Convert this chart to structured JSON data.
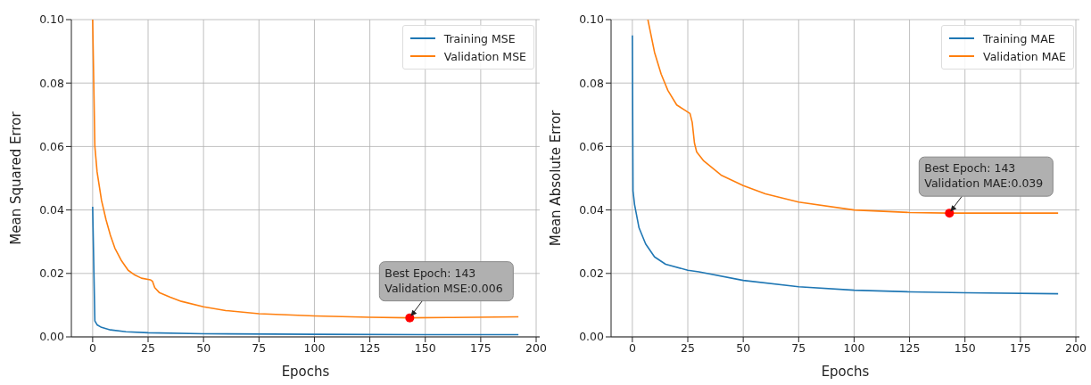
{
  "chart_data": [
    {
      "type": "line",
      "xlabel": "Epochs",
      "ylabel": "Mean Squared Error",
      "xlim": [
        -9.6,
        201.6
      ],
      "xticks": [
        0,
        25,
        50,
        75,
        100,
        125,
        150,
        175,
        200
      ],
      "ylim": [
        0,
        0.1
      ],
      "yticks": [
        {
          "value": 0,
          "label": "0.00"
        },
        {
          "value": 0.02,
          "label": "0.02"
        },
        {
          "value": 0.04,
          "label": "0.04"
        },
        {
          "value": 0.06,
          "label": "0.06"
        },
        {
          "value": 0.08,
          "label": "0.08"
        },
        {
          "value": 0.1,
          "label": "0.10"
        }
      ],
      "grid": true,
      "legend": "top right",
      "series": [
        {
          "name": "Training MSE",
          "color": "#1f77b4",
          "x": [
            0,
            1,
            2,
            4,
            8,
            15,
            25,
            50,
            100,
            150,
            192
          ],
          "values": [
            0.041,
            0.005,
            0.0038,
            0.003,
            0.0022,
            0.0016,
            0.0013,
            0.001,
            0.0008,
            0.0007,
            0.0007
          ]
        },
        {
          "name": "Validation MSE",
          "color": "#ff7f0e",
          "x": [
            0,
            1,
            2,
            4,
            6,
            8,
            10,
            13,
            16,
            19,
            22,
            26,
            27,
            28,
            30,
            35,
            40,
            50,
            60,
            75,
            100,
            125,
            143,
            160,
            192
          ],
          "values": [
            0.1,
            0.06,
            0.052,
            0.043,
            0.037,
            0.032,
            0.028,
            0.024,
            0.021,
            0.0195,
            0.0185,
            0.018,
            0.0175,
            0.0155,
            0.014,
            0.0125,
            0.0112,
            0.0095,
            0.0083,
            0.0073,
            0.0066,
            0.0062,
            0.006,
            0.0061,
            0.0063
          ]
        },
        {
          "type": "scatter",
          "color": "#ff0000",
          "marker": "circle",
          "x": [
            143
          ],
          "values": [
            0.006
          ]
        }
      ],
      "annotations": [
        {
          "text": "Best Epoch: 143\nValidation MSE:0.006",
          "x": 143,
          "y": 0.006
        }
      ]
    },
    {
      "type": "line",
      "xlabel": "Epochs",
      "ylabel": "Mean Absolute Error",
      "xlim": [
        -9.6,
        201.6
      ],
      "xticks": [
        0,
        25,
        50,
        75,
        100,
        125,
        150,
        175,
        200
      ],
      "ylim": [
        0,
        0.1
      ],
      "yticks": [
        {
          "value": 0,
          "label": "0.00"
        },
        {
          "value": 0.02,
          "label": "0.02"
        },
        {
          "value": 0.04,
          "label": "0.04"
        },
        {
          "value": 0.06,
          "label": "0.06"
        },
        {
          "value": 0.08,
          "label": "0.08"
        },
        {
          "value": 0.1,
          "label": "0.10"
        }
      ],
      "grid": true,
      "legend": "top right",
      "series": [
        {
          "name": "Training MAE",
          "color": "#1f77b4",
          "x": [
            0,
            0.3,
            1,
            3,
            6,
            10,
            15,
            25,
            30,
            50,
            75,
            100,
            125,
            150,
            192
          ],
          "values": [
            0.095,
            0.046,
            0.0417,
            0.0344,
            0.0293,
            0.0252,
            0.0229,
            0.021,
            0.0205,
            0.0178,
            0.0158,
            0.0147,
            0.0142,
            0.0139,
            0.0136
          ]
        },
        {
          "name": "Validation MAE",
          "color": "#ff7f0e",
          "x": [
            7,
            10,
            13,
            16,
            20,
            24,
            26,
            27,
            28,
            29,
            32,
            40,
            50,
            60,
            75,
            100,
            125,
            143,
            192
          ],
          "values": [
            0.1,
            0.0897,
            0.0828,
            0.0777,
            0.0731,
            0.0713,
            0.0704,
            0.0676,
            0.0611,
            0.0583,
            0.0556,
            0.051,
            0.0477,
            0.0451,
            0.0425,
            0.04,
            0.0392,
            0.039,
            0.039
          ]
        },
        {
          "type": "scatter",
          "color": "#ff0000",
          "marker": "circle",
          "x": [
            143
          ],
          "values": [
            0.039
          ]
        }
      ],
      "annotations": [
        {
          "text": "Best Epoch: 143\nValidation MAE:0.039",
          "x": 143,
          "y": 0.039
        }
      ]
    }
  ]
}
